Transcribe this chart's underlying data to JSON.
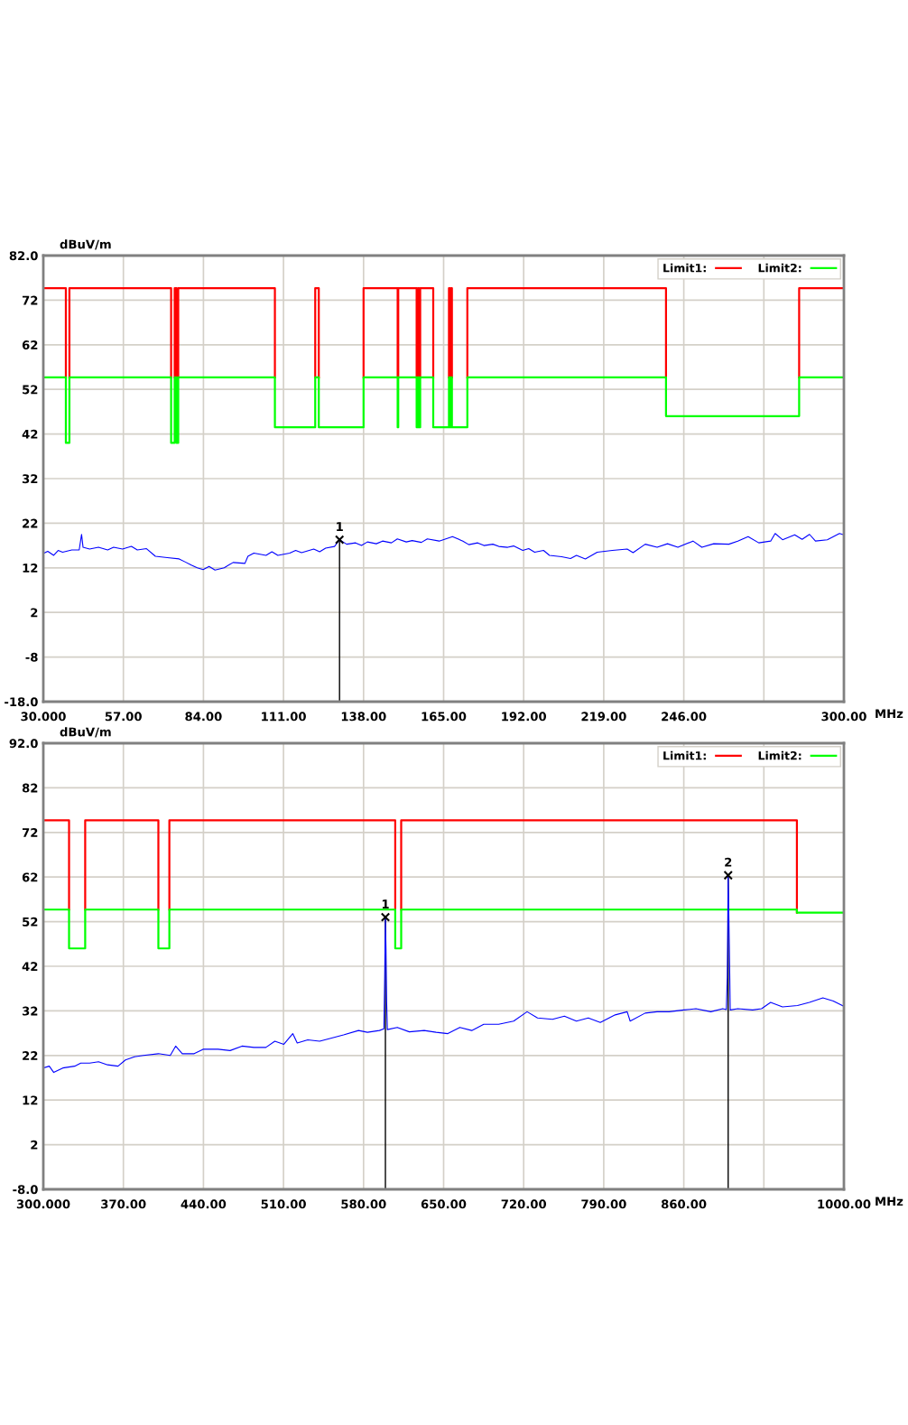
{
  "chart_data": [
    {
      "type": "line",
      "ylabel": "dBuV/m",
      "xlabel": "MHz",
      "xlim": [
        30,
        300
      ],
      "xticks": [
        {
          "value": 30,
          "label": "30.000"
        },
        {
          "value": 57,
          "label": "57.00"
        },
        {
          "value": 84,
          "label": "84.00"
        },
        {
          "value": 111,
          "label": "111.00"
        },
        {
          "value": 138,
          "label": "138.00"
        },
        {
          "value": 165,
          "label": "165.00"
        },
        {
          "value": 192,
          "label": "192.00"
        },
        {
          "value": 219,
          "label": "219.00"
        },
        {
          "value": 246,
          "label": "246.00"
        },
        {
          "value": 273,
          "label": null
        },
        {
          "value": 300,
          "label": "300.00"
        }
      ],
      "ylim": [
        -18,
        82
      ],
      "yticks": [
        {
          "value": -18,
          "label": "-18.0"
        },
        -8,
        2,
        12,
        22,
        32,
        42,
        52,
        62,
        72,
        {
          "value": 82,
          "label": "82.0"
        }
      ],
      "grid": true,
      "legend": "top right",
      "series": [
        {
          "name": "Limit1:",
          "color": "#ff0000",
          "x": [
            30,
            37.6,
            37.6,
            38.2,
            38.8,
            38.8,
            73.1,
            73.1,
            73.7,
            74.3,
            74.3,
            74.9,
            74.9,
            75.2,
            75.5,
            75.5,
            108.1,
            108.1,
            115,
            121.7,
            121.7,
            122.9,
            122.9,
            130,
            138,
            138,
            149.5,
            149.5,
            149.6,
            149.7,
            149.7,
            155.9,
            155.9,
            156.1,
            156.3,
            156.3,
            156.7,
            156.7,
            156.9,
            157.1,
            157.1,
            161.5,
            161.5,
            164,
            166.8,
            166.8,
            167.1,
            167.1,
            167.3,
            167.5,
            167.5,
            167.8,
            167.8,
            170,
            173,
            173,
            240,
            240,
            262,
            284.9,
            284.9,
            300
          ],
          "values": [
            74.7,
            74.7,
            54.7,
            null,
            54.7,
            74.7,
            74.7,
            54.7,
            null,
            54.7,
            74.7,
            74.7,
            54.7,
            null,
            54.7,
            74.7,
            74.7,
            54.7,
            null,
            54.7,
            74.7,
            74.7,
            54.7,
            null,
            54.7,
            74.7,
            74.7,
            54.7,
            null,
            54.7,
            74.7,
            74.7,
            54.7,
            null,
            54.7,
            74.7,
            74.7,
            54.7,
            null,
            54.7,
            74.7,
            74.7,
            54.7,
            null,
            54.7,
            74.7,
            74.7,
            54.7,
            null,
            54.7,
            74.7,
            74.7,
            54.7,
            null,
            54.7,
            74.7,
            74.7,
            54.7,
            null,
            54.7,
            74.7,
            74.7
          ]
        },
        {
          "name": "Limit2:",
          "color": "#00ff00",
          "x": [
            30,
            37.6,
            37.6,
            38.8,
            38.8,
            73.1,
            73.1,
            74.3,
            74.3,
            74.9,
            74.9,
            75.5,
            75.5,
            108.1,
            108.1,
            121.7,
            121.7,
            122.9,
            122.9,
            138,
            138,
            149.5,
            149.5,
            149.7,
            149.7,
            155.9,
            155.9,
            156.3,
            156.3,
            156.7,
            156.7,
            157.1,
            157.1,
            161.5,
            161.5,
            166.8,
            166.8,
            167.1,
            167.1,
            167.5,
            167.5,
            167.8,
            167.8,
            173,
            173,
            240,
            240,
            284.9,
            284.9,
            300
          ],
          "values": [
            54.7,
            54.7,
            40.0,
            40.0,
            54.7,
            54.7,
            40.0,
            40.0,
            54.7,
            54.7,
            40.0,
            40.0,
            54.7,
            54.7,
            43.5,
            43.5,
            54.7,
            54.7,
            43.5,
            43.5,
            54.7,
            54.7,
            43.5,
            43.5,
            54.7,
            54.7,
            43.5,
            43.5,
            54.7,
            54.7,
            43.5,
            43.5,
            54.7,
            54.7,
            43.5,
            43.5,
            54.7,
            54.7,
            43.5,
            43.5,
            54.7,
            54.7,
            43.5,
            43.5,
            54.7,
            54.7,
            46.0,
            46.0,
            54.7,
            54.7
          ]
        },
        {
          "color": "#0000ff",
          "x": [
            30.0,
            31.5,
            33.5,
            35.0,
            36.5,
            39.6,
            42.1,
            42.9,
            43.4,
            45.6,
            48.6,
            51.7,
            53.7,
            56.7,
            59.7,
            61.7,
            64.8,
            67.8,
            71.8,
            75.8,
            77.9,
            79.9,
            81.9,
            83.9,
            85.9,
            87.9,
            91.0,
            94.0,
            98.0,
            99.0,
            101.0,
            105.1,
            107.1,
            109.1,
            113.1,
            115.1,
            117.1,
            121.2,
            123.2,
            125.2,
            128.2,
            129.9,
            132.3,
            135.3,
            137.3,
            139.3,
            142.3,
            144.4,
            147.4,
            149.4,
            152.4,
            154.4,
            157.5,
            159.5,
            163.5,
            168.0,
            171.5,
            173.5,
            176.5,
            178.6,
            181.6,
            183.6,
            186.6,
            188.6,
            191.7,
            193.7,
            195.7,
            198.7,
            200.7,
            204.8,
            207.8,
            209.8,
            212.8,
            216.8,
            221.9,
            226.9,
            228.9,
            233.0,
            237.0,
            240.5,
            244.0,
            249.1,
            252.1,
            256.1,
            261.2,
            264.2,
            267.7,
            271.3,
            275.3,
            276.8,
            279.3,
            283.4,
            285.9,
            288.4,
            290.4,
            294.4,
            298.5,
            300.0
          ],
          "values": [
            15.2,
            15.7,
            14.8,
            15.9,
            15.5,
            16.0,
            16.0,
            19.5,
            16.6,
            16.2,
            16.6,
            16.0,
            16.6,
            16.2,
            16.8,
            16.0,
            16.3,
            14.6,
            14.3,
            14.0,
            13.3,
            12.6,
            12.0,
            11.6,
            12.3,
            11.5,
            12.0,
            13.2,
            13.0,
            14.6,
            15.3,
            14.8,
            15.6,
            14.8,
            15.3,
            15.9,
            15.4,
            16.2,
            15.6,
            16.4,
            16.8,
            18.3,
            17.3,
            17.6,
            17.0,
            17.8,
            17.4,
            18.0,
            17.6,
            18.5,
            17.8,
            18.1,
            17.7,
            18.5,
            18.0,
            19.0,
            18.0,
            17.2,
            17.6,
            17.0,
            17.3,
            16.8,
            16.6,
            16.9,
            15.9,
            16.3,
            15.5,
            15.9,
            14.8,
            14.5,
            14.1,
            14.8,
            14.0,
            15.5,
            15.9,
            16.2,
            15.4,
            17.3,
            16.6,
            17.4,
            16.6,
            18.0,
            16.6,
            17.4,
            17.3,
            18.0,
            19.0,
            17.6,
            18.0,
            19.7,
            18.3,
            19.4,
            18.4,
            19.5,
            18.0,
            18.3,
            19.7,
            19.4
          ]
        }
      ],
      "annotations": [
        {
          "text": "1",
          "x": 129.9,
          "y": 18.3
        }
      ]
    },
    {
      "type": "line",
      "ylabel": "dBuV/m",
      "xlabel": "MHz",
      "xlim": [
        300,
        1000
      ],
      "xticks": [
        {
          "value": 300,
          "label": "300.000"
        },
        {
          "value": 370,
          "label": "370.00"
        },
        {
          "value": 440,
          "label": "440.00"
        },
        {
          "value": 510,
          "label": "510.00"
        },
        {
          "value": 580,
          "label": "580.00"
        },
        {
          "value": 650,
          "label": "650.00"
        },
        {
          "value": 720,
          "label": "720.00"
        },
        {
          "value": 790,
          "label": "790.00"
        },
        {
          "value": 860,
          "label": "860.00"
        },
        {
          "value": 930,
          "label": null
        },
        {
          "value": 1000,
          "label": "1000.00"
        }
      ],
      "ylim": [
        -8,
        92
      ],
      "yticks": [
        {
          "value": -8,
          "label": "-8.0"
        },
        2,
        12,
        22,
        32,
        42,
        52,
        62,
        72,
        82,
        {
          "value": 92,
          "label": "92.0"
        }
      ],
      "grid": true,
      "legend": "top right",
      "series": [
        {
          "name": "Limit1:",
          "color": "#ff0000",
          "x": [
            300,
            322.5,
            322.5,
            330,
            336.6,
            336.6,
            400.6,
            400.6,
            405,
            410.2,
            410.2,
            607.7,
            607.7,
            610,
            612.9,
            612.9,
            958.9,
            958.9
          ],
          "values": [
            74.7,
            74.7,
            54.7,
            null,
            54.7,
            74.7,
            74.7,
            54.7,
            null,
            54.7,
            74.7,
            74.7,
            54.7,
            null,
            54.7,
            74.7,
            74.7,
            54.0
          ]
        },
        {
          "name": "Limit2:",
          "color": "#00ff00",
          "x": [
            300,
            322.5,
            322.5,
            336.6,
            336.6,
            400.6,
            400.6,
            410.2,
            410.2,
            607.7,
            607.7,
            612.9,
            612.9,
            958.9,
            958.9,
            1000
          ],
          "values": [
            54.7,
            54.7,
            46.0,
            46.0,
            54.7,
            54.7,
            46.0,
            46.0,
            54.7,
            54.7,
            46.0,
            46.0,
            54.7,
            54.7,
            54.0,
            54.0
          ]
        },
        {
          "color": "#0000ff",
          "x": [
            300.0,
            305.2,
            309.1,
            317.0,
            327.4,
            332.7,
            340.5,
            348.3,
            356.2,
            365.3,
            371.8,
            379.7,
            387.5,
            400.6,
            411.0,
            415.7,
            421.5,
            431.9,
            439.7,
            452.8,
            463.3,
            473.7,
            484.1,
            494.6,
            502.4,
            510.3,
            518.1,
            522.0,
            531.2,
            541.6,
            552.1,
            562.5,
            575.6,
            583.4,
            593.9,
            597.8,
            598.5,
            599.1,
            599.6,
            600.2,
            600.8,
            609.5,
            620.0,
            633.0,
            643.5,
            653.7,
            664.2,
            674.6,
            685.1,
            698.1,
            711.2,
            723.0,
            732.1,
            745.2,
            755.6,
            766.1,
            776.5,
            787.0,
            800.0,
            810.5,
            813.1,
            826.2,
            836.6,
            847.1,
            860.1,
            870.6,
            883.6,
            894.1,
            897.2,
            898.0,
            898.8,
            899.8,
            900.6,
            907.2,
            920.2,
            928.0,
            935.9,
            946.3,
            959.4,
            969.8,
            981.6,
            990.7,
            1000.0
          ],
          "values": [
            19.2,
            19.6,
            18.2,
            19.2,
            19.6,
            20.3,
            20.3,
            20.6,
            19.9,
            19.6,
            21.0,
            21.7,
            22.0,
            22.4,
            22.0,
            24.1,
            22.4,
            22.4,
            23.4,
            23.4,
            23.1,
            24.1,
            23.8,
            23.8,
            25.2,
            24.5,
            26.9,
            24.8,
            25.5,
            25.2,
            25.9,
            26.6,
            27.6,
            27.2,
            27.6,
            28.0,
            39.8,
            53.0,
            46.1,
            33.9,
            27.8,
            28.3,
            27.3,
            27.6,
            27.2,
            26.9,
            28.3,
            27.6,
            29.0,
            29.0,
            29.7,
            31.8,
            30.4,
            30.1,
            30.8,
            29.7,
            30.4,
            29.4,
            31.1,
            31.8,
            29.7,
            31.5,
            31.8,
            31.8,
            32.2,
            32.5,
            31.8,
            32.5,
            32.3,
            39.5,
            62.4,
            46.8,
            32.2,
            32.5,
            32.2,
            32.5,
            33.9,
            32.9,
            33.2,
            33.9,
            34.9,
            34.2,
            33.0
          ]
        }
      ],
      "annotations": [
        {
          "text": "1",
          "x": 599.1,
          "y": 53.0
        },
        {
          "text": "2",
          "x": 898.8,
          "y": 62.4
        }
      ]
    }
  ]
}
